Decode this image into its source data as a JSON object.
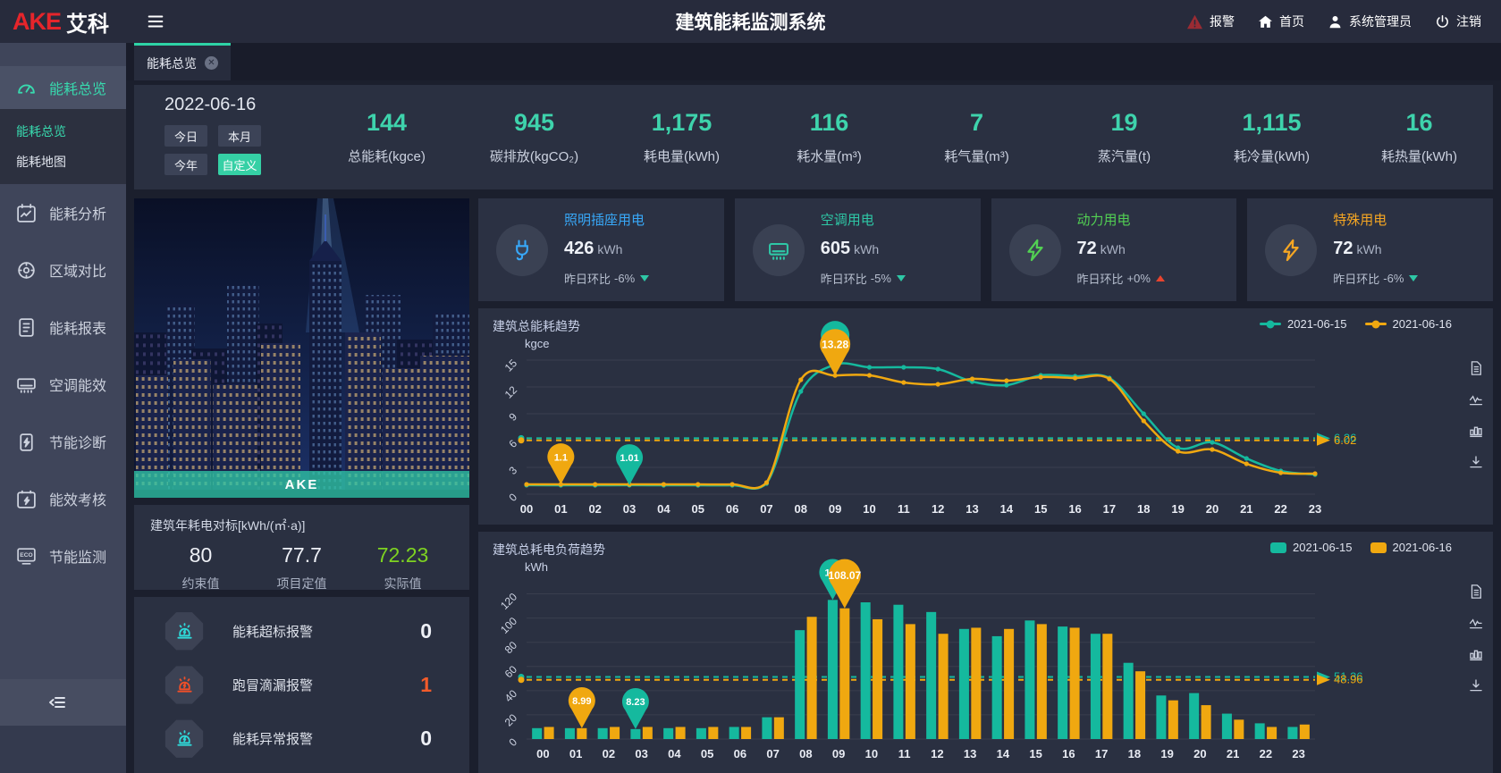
{
  "header": {
    "logo_red": "AKE",
    "logo_cn": "艾科",
    "title": "建筑能耗监测系统",
    "alarm": "报警",
    "home": "首页",
    "user": "系统管理员",
    "logout": "注销"
  },
  "sidebar": {
    "items": [
      {
        "label": "能耗总览",
        "active": true
      },
      {
        "label": "能耗分析"
      },
      {
        "label": "区域对比"
      },
      {
        "label": "能耗报表"
      },
      {
        "label": "空调能效"
      },
      {
        "label": "节能诊断"
      },
      {
        "label": "能效考核"
      },
      {
        "label": "节能监测"
      }
    ],
    "submenu": [
      {
        "label": "能耗总览",
        "active": true
      },
      {
        "label": "能耗地图"
      }
    ]
  },
  "tabs": [
    {
      "label": "能耗总览"
    }
  ],
  "overview": {
    "date": "2022-06-16",
    "range_buttons": [
      {
        "label": "今日"
      },
      {
        "label": "本月"
      },
      {
        "label": "今年"
      },
      {
        "label": "自定义",
        "active": true
      }
    ],
    "kpis": [
      {
        "value": "144",
        "label": "总能耗(kgce)"
      },
      {
        "value": "945",
        "label": "碳排放(kgCO₂)"
      },
      {
        "value": "1,175",
        "label": "耗电量(kWh)"
      },
      {
        "value": "116",
        "label": "耗水量(m³)"
      },
      {
        "value": "7",
        "label": "耗气量(m³)"
      },
      {
        "value": "19",
        "label": "蒸汽量(t)"
      },
      {
        "value": "1,115",
        "label": "耗冷量(kWh)"
      },
      {
        "value": "16",
        "label": "耗热量(kWh)"
      }
    ]
  },
  "building": {
    "image_caption": "AKE"
  },
  "benchmark": {
    "title": "建筑年耗电对标[kWh/(㎡·a)]",
    "columns": [
      {
        "value": "80",
        "label": "约束值",
        "color": "#eef0f6"
      },
      {
        "value": "77.7",
        "label": "项目定值",
        "color": "#eef0f6"
      },
      {
        "value": "72.23",
        "label": "实际值",
        "color": "#7ed321"
      }
    ]
  },
  "alarms": [
    {
      "label": "能耗超标报警",
      "count": "0",
      "level": "normal"
    },
    {
      "label": "跑冒滴漏报警",
      "count": "1",
      "level": "alert"
    },
    {
      "label": "能耗异常报警",
      "count": "0",
      "level": "normal"
    }
  ],
  "usage_cards": [
    {
      "title": "照明插座用电",
      "value": "426",
      "unit": "kWh",
      "compare_label": "昨日环比",
      "change": "-6%",
      "direction": "down",
      "accent": "#38a8f8"
    },
    {
      "title": "空调用电",
      "value": "605",
      "unit": "kWh",
      "compare_label": "昨日环比",
      "change": "-5%",
      "direction": "down",
      "accent": "#2ec7a6"
    },
    {
      "title": "动力用电",
      "value": "72",
      "unit": "kWh",
      "compare_label": "昨日环比",
      "change": "+0%",
      "direction": "up",
      "accent": "#52d053"
    },
    {
      "title": "特殊用电",
      "value": "72",
      "unit": "kWh",
      "compare_label": "昨日环比",
      "change": "-6%",
      "direction": "down",
      "accent": "#f5a623"
    }
  ],
  "chart_data": [
    {
      "type": "line",
      "title": "建筑总能耗趋势",
      "ylabel": "kgce",
      "x": [
        "00",
        "01",
        "02",
        "03",
        "04",
        "05",
        "06",
        "07",
        "08",
        "09",
        "10",
        "11",
        "12",
        "13",
        "14",
        "15",
        "16",
        "17",
        "18",
        "19",
        "20",
        "21",
        "22",
        "23"
      ],
      "ylim": [
        0,
        15
      ],
      "yticks": [
        0,
        3,
        6,
        9,
        12,
        15
      ],
      "legend_position": "top-right",
      "series": [
        {
          "name": "2021-06-15",
          "color": "#15b99e",
          "values": [
            1.01,
            1,
            1,
            1.01,
            1,
            1,
            1,
            1.2,
            11.5,
            14.5,
            14.2,
            14.2,
            14,
            12.6,
            12.2,
            13.3,
            13.2,
            13,
            9,
            5.2,
            5.8,
            4,
            2.6,
            2.2
          ],
          "avg": 6.26,
          "avg_label": "6.26",
          "markers": [
            {
              "hour": 3,
              "label": "1.01"
            },
            {
              "hour": 9,
              "label": ""
            }
          ]
        },
        {
          "name": "2021-06-16",
          "color": "#f0a810",
          "values": [
            1.1,
            1.1,
            1.1,
            1.1,
            1.1,
            1.1,
            1.1,
            1.3,
            12.8,
            13.28,
            13.3,
            12.5,
            12.3,
            12.9,
            12.7,
            13.1,
            13,
            12.9,
            8.2,
            4.8,
            5,
            3.4,
            2.4,
            2.3
          ],
          "avg": 6.02,
          "avg_label": "6.02",
          "markers": [
            {
              "hour": 1,
              "label": "1.1"
            },
            {
              "hour": 9,
              "label": "13.28"
            }
          ]
        }
      ]
    },
    {
      "type": "bar",
      "title": "建筑总耗电负荷趋势",
      "ylabel": "kWh",
      "x": [
        "00",
        "01",
        "02",
        "03",
        "04",
        "05",
        "06",
        "07",
        "08",
        "09",
        "10",
        "11",
        "12",
        "13",
        "14",
        "15",
        "16",
        "17",
        "18",
        "19",
        "20",
        "21",
        "22",
        "23"
      ],
      "ylim": [
        0,
        130
      ],
      "yticks": [
        0,
        20,
        40,
        60,
        80,
        100,
        120
      ],
      "legend_position": "top-right",
      "series": [
        {
          "name": "2021-06-15",
          "color": "#15b99e",
          "values": [
            9,
            9,
            9,
            8.23,
            9,
            9,
            10,
            18,
            90,
            115,
            113,
            111,
            105,
            91,
            85,
            98,
            93,
            87,
            63,
            36,
            38,
            21,
            13,
            10
          ],
          "avg": 51.36,
          "avg_label": "51.36",
          "markers": [
            {
              "hour": 3,
              "label": "8.23"
            },
            {
              "hour": 9,
              "label": "115"
            }
          ]
        },
        {
          "name": "2021-06-16",
          "color": "#f0a810",
          "values": [
            10,
            8.99,
            10,
            10,
            10,
            10,
            10,
            18,
            101,
            108.07,
            99,
            95,
            87,
            92,
            91,
            95,
            92,
            87,
            56,
            32,
            28,
            16,
            10,
            12
          ],
          "avg": 48.96,
          "avg_label": "48.96",
          "markers": [
            {
              "hour": 1,
              "label": "8.99"
            },
            {
              "hour": 9,
              "label": "108.07"
            }
          ]
        }
      ]
    }
  ]
}
